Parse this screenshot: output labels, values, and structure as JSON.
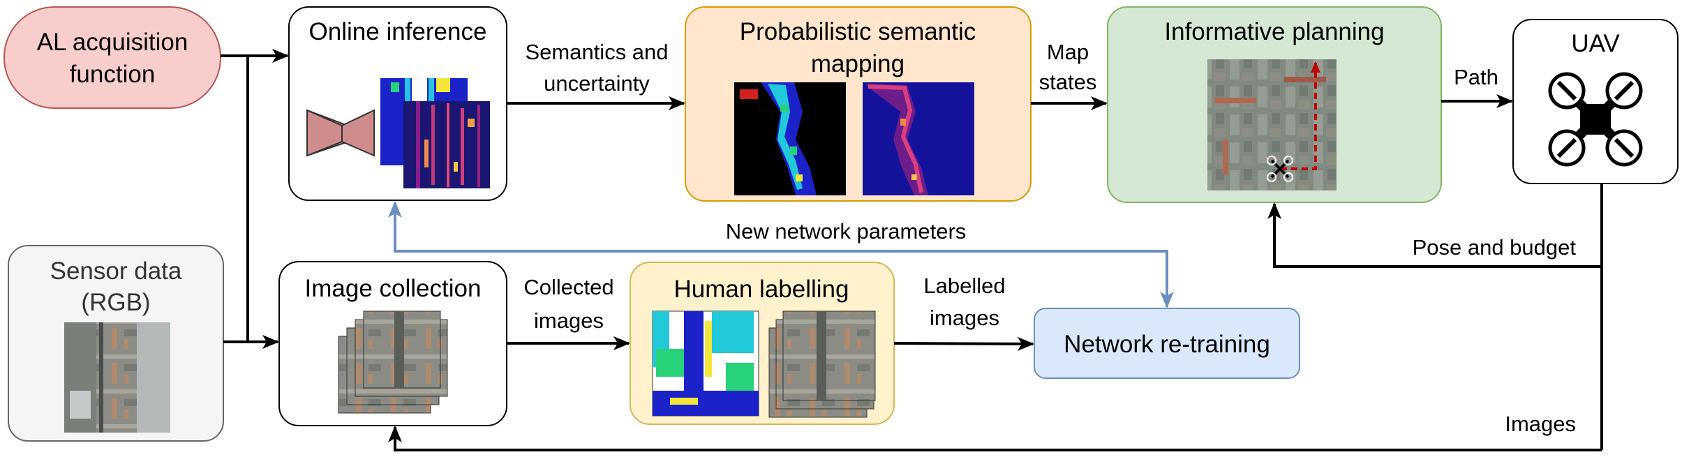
{
  "nodes": {
    "al_function": {
      "lines": [
        "AL acquisition",
        "function"
      ]
    },
    "online_inference": {
      "title": "Online inference"
    },
    "prob_mapping": {
      "lines": [
        "Probabilistic semantic",
        "mapping"
      ]
    },
    "informative_planning": {
      "title": "Informative planning"
    },
    "uav": {
      "title": "UAV"
    },
    "sensor_data": {
      "lines": [
        "Sensor data",
        "(RGB)"
      ]
    },
    "image_collection": {
      "title": "Image collection"
    },
    "human_labelling": {
      "title": "Human labelling"
    },
    "network_retraining": {
      "title": "Network re-training"
    }
  },
  "edges": {
    "semantics": [
      "Semantics and",
      "uncertainty"
    ],
    "map_states": [
      "Map",
      "states"
    ],
    "path": "Path",
    "new_params": "New network parameters",
    "pose_budget": "Pose and budget",
    "collected": [
      "Collected",
      "images"
    ],
    "labelled": [
      "Labelled",
      "images"
    ],
    "images": "Images"
  },
  "colors": {
    "al_fill": "#f8cecc",
    "al_stroke": "#b85450",
    "prob_fill": "#ffe6cc",
    "prob_stroke": "#d79b00",
    "plan_fill": "#d5e8d4",
    "plan_stroke": "#82b366",
    "human_fill": "#fff2cc",
    "human_stroke": "#d6b656",
    "retrain_fill": "#dae8fc",
    "retrain_stroke": "#6c8ebf",
    "sensor_fill": "#f5f5f5",
    "sensor_stroke": "#666666",
    "feedback_arrow": "#6c8ebf",
    "path_arrow": "#c00000"
  }
}
